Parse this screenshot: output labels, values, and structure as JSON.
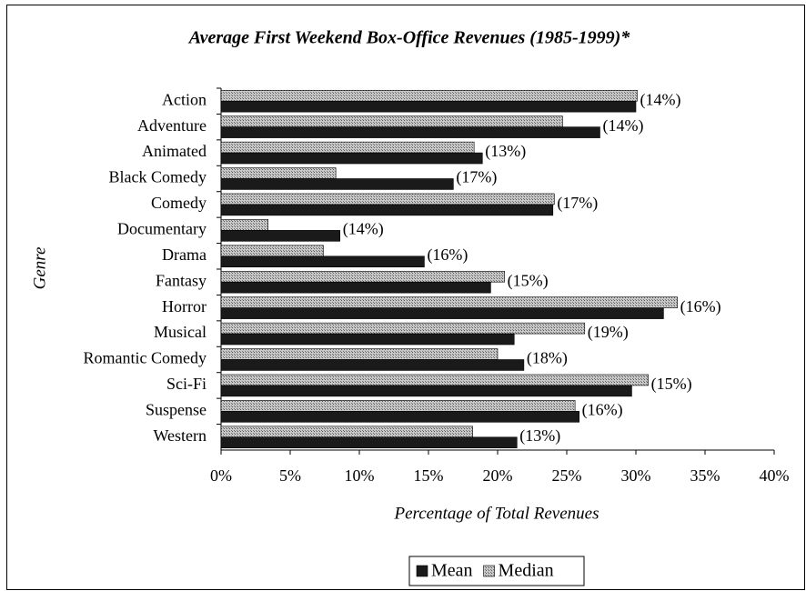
{
  "chart_data": {
    "type": "bar",
    "orientation": "horizontal",
    "title": "Average First Weekend Box-Office Revenues (1985-1999)*",
    "xlabel": "Percentage of Total Revenues",
    "ylabel": "Genre",
    "categories": [
      "Action",
      "Adventure",
      "Animated",
      "Black Comedy",
      "Comedy",
      "Documentary",
      "Drama",
      "Fantasy",
      "Horror",
      "Musical",
      "Romantic Comedy",
      "Sci-Fi",
      "Suspense",
      "Western"
    ],
    "series": [
      {
        "name": "Mean",
        "color": "#1a1a1a",
        "values": [
          30.0,
          27.4,
          18.9,
          16.8,
          24.0,
          8.6,
          14.7,
          19.5,
          32.0,
          21.2,
          21.9,
          29.7,
          25.9,
          21.4
        ]
      },
      {
        "name": "Median",
        "color": "#a0a0a0",
        "values": [
          30.1,
          24.7,
          18.3,
          8.3,
          24.1,
          3.4,
          7.4,
          20.5,
          33.0,
          26.3,
          20.0,
          30.9,
          25.6,
          18.2
        ]
      }
    ],
    "annotations": [
      "(14%)",
      "(14%)",
      "(13%)",
      "(17%)",
      "(17%)",
      "(14%)",
      "(16%)",
      "(15%)",
      "(16%)",
      "(19%)",
      "(18%)",
      "(15%)",
      "(16%)",
      "(13%)"
    ],
    "xlim": [
      0,
      40
    ],
    "xticks": [
      {
        "value": 0,
        "label": "0%"
      },
      {
        "value": 5,
        "label": "5%"
      },
      {
        "value": 10,
        "label": "10%"
      },
      {
        "value": 15,
        "label": "15%"
      },
      {
        "value": 20,
        "label": "20%"
      },
      {
        "value": 25,
        "label": "25%"
      },
      {
        "value": 30,
        "label": "30%"
      },
      {
        "value": 35,
        "label": "35%"
      },
      {
        "value": 40,
        "label": "40%"
      }
    ],
    "grid": false,
    "legend": "bottom"
  }
}
